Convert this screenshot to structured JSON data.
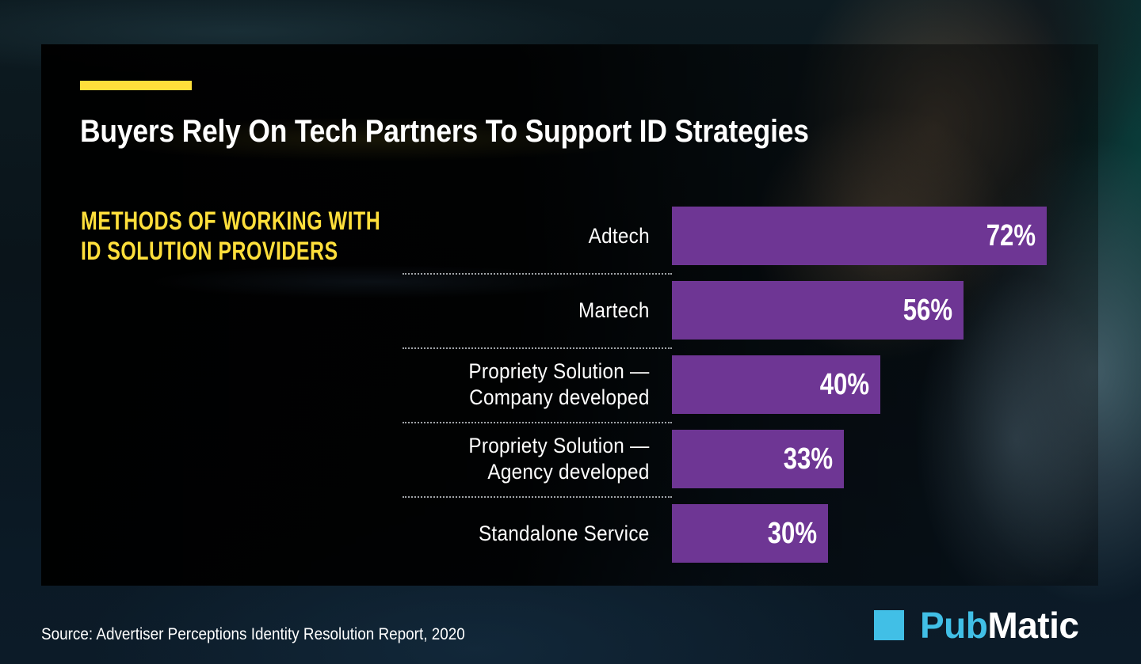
{
  "header": {
    "title": "Buyers Rely On Tech Partners To Support ID Strategies",
    "subtitle_lines": [
      "METHODS OF WORKING WITH",
      "ID SOLUTION PROVIDERS"
    ]
  },
  "colors": {
    "accent_yellow": "#ffdf3b",
    "bar_purple": "#6e3694",
    "logo_blue": "#41bfe6"
  },
  "chart_data": {
    "type": "bar",
    "orientation": "horizontal",
    "title": "Buyers Rely On Tech Partners To Support ID Strategies",
    "subtitle": "METHODS OF WORKING WITH ID SOLUTION PROVIDERS",
    "categories": [
      [
        "Adtech"
      ],
      [
        "Martech"
      ],
      [
        "Propriety Solution —",
        "Company developed"
      ],
      [
        "Propriety Solution —",
        "Agency developed"
      ],
      [
        "Standalone Service"
      ]
    ],
    "values": [
      72,
      56,
      40,
      33,
      30
    ],
    "value_labels": [
      "72%",
      "56%",
      "40%",
      "33%",
      "30%"
    ],
    "unit": "%",
    "xlabel": "",
    "ylabel": "",
    "xlim": [
      0,
      72
    ],
    "grid": false,
    "legend": "none"
  },
  "footer": {
    "source": "Source: Advertiser Perceptions Identity Resolution Report, 2020",
    "logo_pub": "Pub",
    "logo_matic": "Matic"
  }
}
